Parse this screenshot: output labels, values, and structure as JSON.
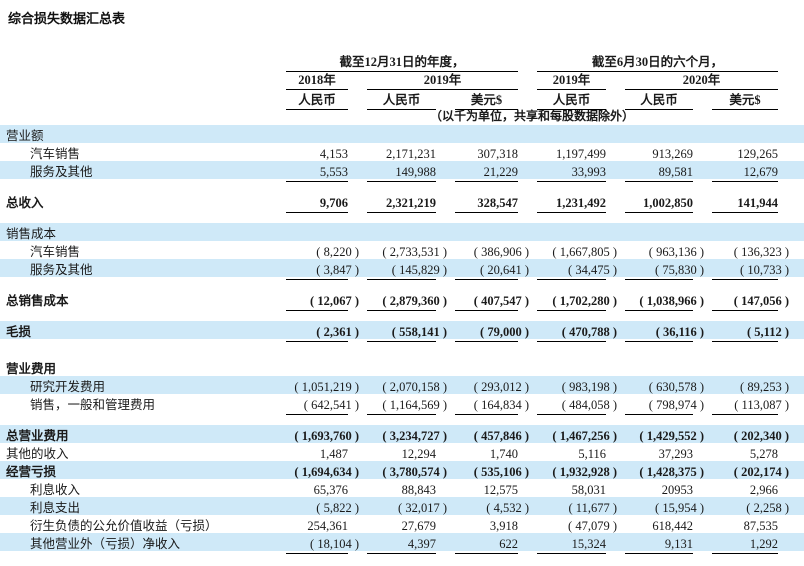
{
  "page": {
    "title": "综合损失数据汇总表"
  },
  "colors": {
    "highlight": "#cfe9f8",
    "text": "#1a1a1a",
    "rule": "#000000"
  },
  "table": {
    "col_groups": [
      {
        "label": "截至12月31日的年度，",
        "span": 3
      },
      {
        "label": "截至6月30日的六个月，",
        "span": 3
      }
    ],
    "year_headers": [
      {
        "label": "2018年",
        "span": 1
      },
      {
        "label": "2019年",
        "span": 2
      },
      {
        "label": "2019年",
        "span": 1
      },
      {
        "label": "2020年",
        "span": 2
      }
    ],
    "currency_headers": [
      "人民币",
      "人民币",
      "美元$",
      "人民币",
      "人民币",
      "美元$"
    ],
    "unit_note": "（以千为单位，共享和每股数据除外）",
    "rows": [
      {
        "label": "营业额",
        "highlight": true,
        "values": []
      },
      {
        "label": "汽车销售",
        "indent": true,
        "values": [
          "4,153",
          "2,171,231",
          "307,318",
          "1,197,499",
          "913,269",
          "129,265"
        ]
      },
      {
        "label": "服务及其他",
        "indent": true,
        "highlight": true,
        "rule": true,
        "values": [
          "5,553",
          "149,988",
          "21,229",
          "33,993",
          "89,581",
          "12,679"
        ]
      },
      {
        "label": "总收入",
        "bold": true,
        "rule": true,
        "gap": 1,
        "values": [
          "9,706",
          "2,321,219",
          "328,547",
          "1,231,492",
          "1,002,850",
          "141,944"
        ]
      },
      {
        "label": "销售成本",
        "highlight": true,
        "gap": 1,
        "values": []
      },
      {
        "label": "汽车销售",
        "indent": true,
        "values": [
          "( 8,220 )",
          "( 2,733,531 )",
          "( 386,906 )",
          "( 1,667,805 )",
          "( 963,136 )",
          "( 136,323 )"
        ]
      },
      {
        "label": "服务及其他",
        "indent": true,
        "highlight": true,
        "rule": true,
        "values": [
          "( 3,847 )",
          "( 145,829 )",
          "( 20,641 )",
          "( 34,475 )",
          "( 75,830 )",
          "( 10,733 )"
        ]
      },
      {
        "label": "总销售成本",
        "bold": true,
        "rule": true,
        "gap": 1,
        "values": [
          "( 12,067 )",
          "( 2,879,360 )",
          "( 407,547 )",
          "( 1,702,280 )",
          "( 1,038,966 )",
          "( 147,056 )"
        ]
      },
      {
        "label": "毛损",
        "bold": true,
        "highlight": true,
        "rule": true,
        "gap": 1,
        "values": [
          "( 2,361 )",
          "( 558,141 )",
          "( 79,000 )",
          "( 470,788 )",
          "( 36,116 )",
          "( 5,112 )"
        ]
      },
      {
        "label": "营业费用",
        "bold": true,
        "gap": 2,
        "values": []
      },
      {
        "label": "研究开发费用",
        "indent": true,
        "highlight": true,
        "values": [
          "( 1,051,219 )",
          "( 2,070,158 )",
          "( 293,012 )",
          "( 983,198 )",
          "( 630,578 )",
          "( 89,253 )"
        ]
      },
      {
        "label": "销售，一般和管理费用",
        "indent": true,
        "rule": true,
        "values": [
          "( 642,541 )",
          "( 1,164,569 )",
          "( 164,834 )",
          "( 484,058 )",
          "( 798,974 )",
          "( 113,087 )"
        ]
      },
      {
        "label": "总营业费用",
        "bold": true,
        "highlight": true,
        "gap": 1,
        "values": [
          "( 1,693,760 )",
          "( 3,234,727 )",
          "( 457,846 )",
          "( 1,467,256 )",
          "( 1,429,552 )",
          "( 202,340 )"
        ]
      },
      {
        "label": "其他的收入",
        "values": [
          "1,487",
          "12,294",
          "1,740",
          "5,116",
          "37,293",
          "5,278"
        ]
      },
      {
        "label": "经营亏损",
        "bold": true,
        "highlight": true,
        "values": [
          "( 1,694,634 )",
          "( 3,780,574 )",
          "( 535,106 )",
          "( 1,932,928 )",
          "( 1,428,375 )",
          "( 202,174 )"
        ]
      },
      {
        "label": "利息收入",
        "indent": true,
        "values": [
          "65,376",
          "88,843",
          "12,575",
          "58,031",
          "20953",
          "2,966"
        ]
      },
      {
        "label": "利息支出",
        "indent": true,
        "highlight": true,
        "values": [
          "( 5,822 )",
          "( 32,017 )",
          "( 4,532 )",
          "( 11,677 )",
          "( 15,954 )",
          "( 2,258 )"
        ]
      },
      {
        "label": "衍生负债的公允价值收益（亏损）",
        "indent": true,
        "values": [
          "254,361",
          "27,679",
          "3,918",
          "( 47,079 )",
          "618,442",
          "87,535"
        ]
      },
      {
        "label": "其他营业外（亏损）净收入",
        "indent": true,
        "highlight": true,
        "rule": true,
        "values": [
          "( 18,104 )",
          "4,397",
          "622",
          "15,324",
          "9,131",
          "1,292"
        ]
      }
    ]
  }
}
